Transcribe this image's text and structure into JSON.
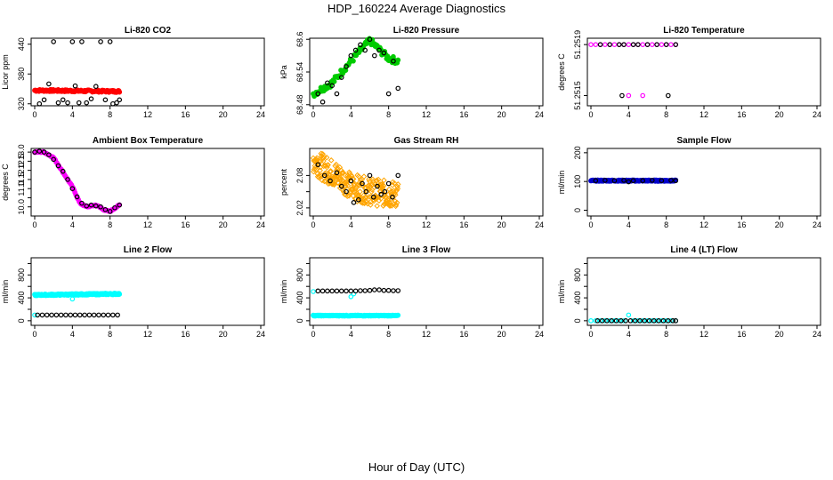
{
  "page": {
    "title": "HDP_160224  Average Diagnostics",
    "xlabel": "Hour of Day (UTC)"
  },
  "colors": {
    "black": "#000000",
    "red": "#ff0000",
    "green": "#00cc00",
    "magenta": "#ff00ff",
    "orange": "#ffa500",
    "blue": "#0000cc",
    "cyan": "#00ffff"
  },
  "chart_data": [
    {
      "type": "scatter",
      "title": "Li-820 CO2",
      "ylabel": "Licor ppm",
      "xlim": [
        0,
        24
      ],
      "xticks": [
        0,
        4,
        8,
        12,
        16,
        20,
        24
      ],
      "ylim": [
        316,
        452
      ],
      "yticks": [
        320,
        380,
        440
      ],
      "series": [
        {
          "name": "samples",
          "color": "#ff0000",
          "marker": "dot",
          "x_range": [
            0,
            9
          ],
          "n": 120,
          "y_start": 347,
          "y_end": 345,
          "jitter": 2
        },
        {
          "name": "averages",
          "color": "#000000",
          "marker": "circle",
          "x": [
            0.5,
            1.0,
            1.5,
            2.0,
            2.5,
            3.0,
            3.5,
            4.0,
            4.3,
            4.7,
            5.0,
            5.5,
            6.0,
            6.5,
            7.0,
            7.5,
            8.0,
            8.3,
            8.7,
            9.0
          ],
          "y": [
            320,
            328,
            360,
            445,
            322,
            328,
            322,
            445,
            356,
            322,
            445,
            322,
            330,
            355,
            445,
            328,
            445,
            320,
            322,
            328
          ]
        }
      ]
    },
    {
      "type": "scatter",
      "title": "Li-820 Pressure",
      "ylabel": "kPa",
      "xlim": [
        0,
        24
      ],
      "xticks": [
        0,
        4,
        8,
        12,
        16,
        20,
        24
      ],
      "ylim": [
        68.478,
        68.602
      ],
      "yticks": [
        68.48,
        68.54,
        68.6
      ],
      "series": [
        {
          "name": "samples",
          "color": "#00cc00",
          "marker": "dot",
          "x_range": [
            0,
            9
          ],
          "n": 90,
          "y_profile": [
            [
              0,
              68.5
            ],
            [
              1,
              68.51
            ],
            [
              2,
              68.52
            ],
            [
              4,
              68.56
            ],
            [
              6,
              68.598
            ],
            [
              8,
              68.565
            ],
            [
              9,
              68.56
            ]
          ],
          "jitter": 0.006
        },
        {
          "name": "averages",
          "color": "#000000",
          "marker": "circle",
          "x": [
            0.5,
            1.0,
            1.5,
            2.0,
            2.5,
            3.0,
            3.5,
            4.0,
            4.5,
            5.0,
            5.5,
            6.0,
            6.5,
            7.0,
            7.5,
            8.0,
            8.5,
            9.0
          ],
          "y": [
            68.5,
            68.485,
            68.52,
            68.515,
            68.5,
            68.53,
            68.55,
            68.57,
            68.58,
            68.59,
            68.58,
            68.6,
            68.57,
            68.58,
            68.575,
            68.5,
            68.56,
            68.51
          ]
        }
      ]
    },
    {
      "type": "scatter",
      "title": "Li-820 Temperature",
      "ylabel": "degrees C",
      "xlim": [
        0,
        24
      ],
      "xticks": [
        0,
        4,
        8,
        12,
        16,
        20,
        24
      ],
      "ylim": [
        51.25142,
        51.25195
      ],
      "yticks": [
        51.2515,
        51.2519
      ],
      "ytick_labels": [
        "51.2515",
        "51.2519"
      ],
      "series": [
        {
          "name": "samples",
          "color": "#ff00ff",
          "marker": "circle",
          "x": [
            0,
            0.5,
            1,
            1.5,
            2,
            2.5,
            3,
            3.5,
            4,
            4.5,
            5,
            5.5,
            6,
            6.5,
            7,
            7.5,
            8,
            8.5,
            9,
            4.0,
            5.5
          ],
          "y": [
            51.2519,
            51.2519,
            51.2519,
            51.2519,
            51.2519,
            51.2519,
            51.2519,
            51.2519,
            51.2519,
            51.2519,
            51.2519,
            51.2519,
            51.2519,
            51.2519,
            51.2519,
            51.2519,
            51.2519,
            51.2519,
            51.2519,
            51.2515,
            51.2515
          ]
        },
        {
          "name": "averages",
          "color": "#000000",
          "marker": "circle",
          "x": [
            1,
            2,
            3,
            3.5,
            4.5,
            5,
            6,
            7,
            8,
            9,
            3.3,
            8.2
          ],
          "y": [
            51.2519,
            51.2519,
            51.2519,
            51.2519,
            51.2519,
            51.2519,
            51.2519,
            51.2519,
            51.2519,
            51.2519,
            51.2515,
            51.2515
          ]
        }
      ]
    },
    {
      "type": "scatter",
      "title": "Ambient Box Temperature",
      "ylabel": "degrees C",
      "xlim": [
        0,
        24
      ],
      "xticks": [
        0,
        4,
        8,
        12,
        16,
        20,
        24
      ],
      "ylim": [
        9.5,
        13.2
      ],
      "yticks": [
        10.0,
        10.5,
        11.0,
        11.5,
        12.0,
        12.5,
        13.0
      ],
      "ytick_labels": [
        "10.0",
        "",
        "11.0",
        "11.5",
        "12.0",
        "12.5",
        "13.0"
      ],
      "series": [
        {
          "name": "samples",
          "color": "#ff00ff",
          "marker": "dot",
          "x_range": [
            0,
            9
          ],
          "n": 100,
          "y_profile": [
            [
              0,
              13.0
            ],
            [
              1,
              13.0
            ],
            [
              2,
              12.7
            ],
            [
              3,
              11.9
            ],
            [
              4,
              11.1
            ],
            [
              4.8,
              10.2
            ],
            [
              5.5,
              10.0
            ],
            [
              6.5,
              10.1
            ],
            [
              7.5,
              9.8
            ],
            [
              8,
              9.75
            ],
            [
              9,
              10.1
            ]
          ],
          "jitter": 0.03
        },
        {
          "name": "averages",
          "color": "#000000",
          "marker": "circle",
          "x": [
            0,
            0.5,
            1,
            1.5,
            2,
            2.5,
            3,
            3.5,
            4,
            4.5,
            5,
            5.5,
            6,
            6.5,
            7,
            7.5,
            8,
            8.5,
            9
          ],
          "y": [
            13.0,
            13.05,
            13.0,
            12.85,
            12.6,
            12.25,
            11.95,
            11.5,
            11.0,
            10.55,
            10.2,
            10.05,
            10.1,
            10.05,
            10.0,
            9.85,
            9.75,
            9.95,
            10.1
          ]
        }
      ]
    },
    {
      "type": "scatter",
      "title": "Gas Stream RH",
      "ylabel": "percent",
      "xlim": [
        0,
        24
      ],
      "xticks": [
        0,
        4,
        8,
        12,
        16,
        20,
        24
      ],
      "ylim": [
        2.005,
        2.13
      ],
      "yticks": [
        2.02,
        2.05,
        2.08
      ],
      "ytick_labels": [
        "2.02",
        "",
        "2.08"
      ],
      "series": [
        {
          "name": "samples",
          "color": "#ffa500",
          "marker": "diamond",
          "x_range": [
            0,
            9
          ],
          "n": 260,
          "y_profile": [
            [
              0,
              2.11
            ],
            [
              1,
              2.095
            ],
            [
              2,
              2.085
            ],
            [
              3,
              2.075
            ],
            [
              4,
              2.06
            ],
            [
              5,
              2.055
            ],
            [
              6,
              2.05
            ],
            [
              7,
              2.048
            ],
            [
              8,
              2.045
            ],
            [
              9,
              2.045
            ]
          ],
          "jitter": 0.025
        },
        {
          "name": "averages",
          "color": "#000000",
          "marker": "circle",
          "x": [
            0.5,
            1.2,
            1.8,
            2.5,
            3.0,
            3.5,
            4.0,
            4.3,
            4.8,
            5.2,
            5.6,
            6.0,
            6.4,
            6.8,
            7.2,
            7.6,
            8.0,
            8.4,
            9.0
          ],
          "y": [
            2.1,
            2.08,
            2.07,
            2.085,
            2.06,
            2.05,
            2.07,
            2.03,
            2.035,
            2.065,
            2.05,
            2.08,
            2.04,
            2.06,
            2.045,
            2.05,
            2.065,
            2.04,
            2.08
          ]
        }
      ]
    },
    {
      "type": "scatter",
      "title": "Sample Flow",
      "ylabel": "ml/min",
      "xlim": [
        0,
        24
      ],
      "xticks": [
        0,
        4,
        8,
        12,
        16,
        20,
        24
      ],
      "ylim": [
        -20,
        215
      ],
      "yticks": [
        0,
        100,
        200
      ],
      "series": [
        {
          "name": "samples",
          "color": "#0000cc",
          "marker": "dot",
          "x_range": [
            0,
            9
          ],
          "n": 180,
          "y_start": 103,
          "y_end": 103,
          "jitter": 2
        },
        {
          "name": "averages",
          "color": "#000000",
          "marker": "circle",
          "x": [
            0.5,
            1.5,
            2.5,
            3.5,
            4.0,
            4.5,
            5.5,
            6.5,
            7.5,
            8.5,
            9.0
          ],
          "y": [
            103,
            104,
            103,
            104,
            99,
            103,
            103,
            104,
            103,
            104,
            103
          ]
        }
      ]
    },
    {
      "type": "scatter",
      "title": "Line 2 Flow",
      "ylabel": "ml/min",
      "xlim": [
        0,
        24
      ],
      "xticks": [
        0,
        4,
        8,
        12,
        16,
        20,
        24
      ],
      "ylim": [
        -80,
        1100
      ],
      "yticks": [
        0,
        200,
        400,
        600,
        800,
        1000
      ],
      "ytick_labels": [
        "0",
        "",
        "400",
        "",
        "800",
        ""
      ],
      "series": [
        {
          "name": "samples",
          "color": "#00ffff",
          "marker": "dot",
          "x_range": [
            0,
            9
          ],
          "n": 160,
          "y_start": 450,
          "y_end": 470,
          "jitter": 12
        },
        {
          "name": "samples-low",
          "color": "#00ffff",
          "marker": "circle",
          "x": [
            0,
            4
          ],
          "y": [
            100,
            380
          ]
        },
        {
          "name": "averages",
          "color": "#000000",
          "marker": "circle",
          "x": [
            0.3,
            0.8,
            1.3,
            1.8,
            2.3,
            2.8,
            3.3,
            3.8,
            4.3,
            4.8,
            5.3,
            5.8,
            6.3,
            6.8,
            7.3,
            7.8,
            8.3,
            8.8
          ],
          "y": [
            100,
            100,
            100,
            100,
            100,
            100,
            100,
            100,
            100,
            100,
            100,
            100,
            100,
            100,
            100,
            100,
            100,
            100
          ]
        }
      ]
    },
    {
      "type": "scatter",
      "title": "Line 3 Flow",
      "ylabel": "ml/min",
      "xlim": [
        0,
        24
      ],
      "xticks": [
        0,
        4,
        8,
        12,
        16,
        20,
        24
      ],
      "ylim": [
        -80,
        1100
      ],
      "yticks": [
        0,
        200,
        400,
        600,
        800,
        1000
      ],
      "ytick_labels": [
        "0",
        "",
        "400",
        "",
        "800",
        ""
      ],
      "series": [
        {
          "name": "samples",
          "color": "#00ffff",
          "marker": "dot",
          "x_range": [
            0,
            9
          ],
          "n": 170,
          "y_start": 90,
          "y_end": 90,
          "jitter": 6
        },
        {
          "name": "samples-high",
          "color": "#00ffff",
          "marker": "circle",
          "x": [
            0,
            4,
            4.3
          ],
          "y": [
            510,
            420,
            470
          ]
        },
        {
          "name": "averages",
          "color": "#000000",
          "marker": "circle",
          "x": [
            0.5,
            1.0,
            1.5,
            2.0,
            2.5,
            3.0,
            3.5,
            4.0,
            4.5,
            5.0,
            5.5,
            6.0,
            6.5,
            7.0,
            7.5,
            8.0,
            8.5,
            9.0
          ],
          "y": [
            520,
            520,
            520,
            520,
            520,
            520,
            520,
            520,
            520,
            525,
            525,
            530,
            540,
            540,
            530,
            530,
            525,
            525
          ]
        }
      ]
    },
    {
      "type": "scatter",
      "title": "Line 4 (LT) Flow",
      "ylabel": "ml/min",
      "xlim": [
        0,
        24
      ],
      "xticks": [
        0,
        4,
        8,
        12,
        16,
        20,
        24
      ],
      "ylim": [
        -80,
        1100
      ],
      "yticks": [
        0,
        200,
        400,
        600,
        800,
        1000
      ],
      "ytick_labels": [
        "0",
        "",
        "400",
        "",
        "800",
        ""
      ],
      "series": [
        {
          "name": "samples",
          "color": "#00ffff",
          "marker": "circle",
          "x": [
            0,
            0.5,
            1,
            1.5,
            2,
            2.5,
            3,
            3.5,
            4,
            4.5,
            5,
            5.5,
            6,
            6.5,
            7,
            7.5,
            8,
            8.5,
            9
          ],
          "y": [
            0,
            0,
            0,
            0,
            0,
            0,
            0,
            0,
            100,
            0,
            0,
            0,
            0,
            0,
            0,
            0,
            0,
            0,
            0
          ]
        },
        {
          "name": "averages",
          "color": "#000000",
          "marker": "circle",
          "x": [
            0.7,
            1.2,
            1.7,
            2.2,
            2.7,
            3.2,
            3.7,
            4.2,
            4.7,
            5.2,
            5.7,
            6.2,
            6.7,
            7.2,
            7.7,
            8.2,
            8.7,
            9.0
          ],
          "y": [
            0,
            0,
            0,
            0,
            0,
            0,
            0,
            0,
            0,
            0,
            0,
            0,
            0,
            0,
            0,
            0,
            0,
            0
          ]
        }
      ]
    }
  ]
}
